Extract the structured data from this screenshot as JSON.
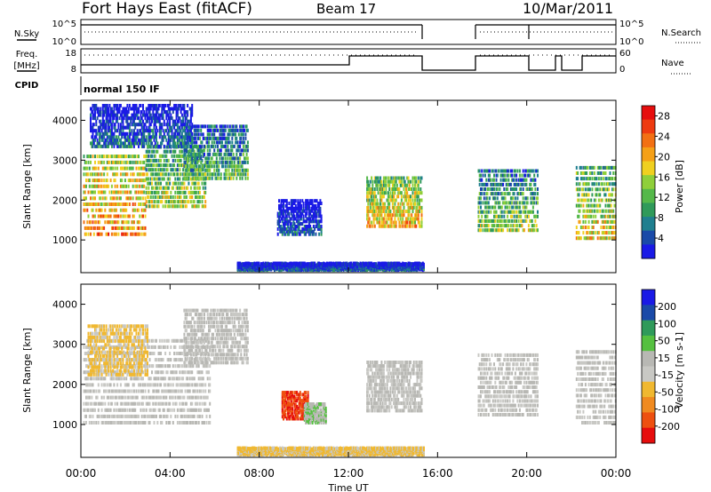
{
  "header": {
    "station": "Fort Hays East (fitACF)",
    "beam": "Beam 17",
    "date": "10/Mar/2011"
  },
  "panels": {
    "nsky_label": "N.Sky",
    "nsky_ticks": [
      "10^5",
      "10^0"
    ],
    "nsearch_label": "N.Search",
    "nsearch_ticks": [
      "10^5",
      "10^0"
    ],
    "freq_label_1": "Freq.",
    "freq_label_2": "[MHz]",
    "freq_ticks": [
      "18",
      "8"
    ],
    "nave_label": "Nave",
    "nave_ticks": [
      "60",
      "0"
    ],
    "cpid_label": "CPID",
    "cpid_value": "normal 150 IF"
  },
  "colors": {
    "power_scale": [
      "#1a1ae6",
      "#1a4aa8",
      "#1f7f8f",
      "#2f9a5a",
      "#55b84a",
      "#8fcf3a",
      "#f0d020",
      "#f5a017",
      "#f27013",
      "#ee3b10",
      "#e60d0d"
    ],
    "velocity_scale": [
      "#1a1ae6",
      "#1a4aa8",
      "#2f9a5a",
      "#55c040",
      "#b8b8b4",
      "#c8c8c4",
      "#f0b830",
      "#f08a20",
      "#ee5010",
      "#e60d0d"
    ]
  },
  "chart_data": [
    {
      "type": "heatmap",
      "name": "power",
      "ylabel": "Slant Range [km]",
      "xlabel": "Time UT",
      "x_ticks": [
        "00:00",
        "04:00",
        "08:00",
        "12:00",
        "16:00",
        "20:00",
        "00:00"
      ],
      "y_ticks": [
        "1000",
        "2000",
        "3000",
        "4000"
      ],
      "xlim_hours": [
        0,
        24
      ],
      "ylim_km": [
        180,
        4500
      ],
      "colorbar_label": "Power [dB]",
      "colorbar_ticks": [
        "4",
        "8",
        "12",
        "16",
        "20",
        "24",
        "28"
      ],
      "colorbar_range": [
        0,
        30
      ],
      "regions": [
        {
          "t0": 0.1,
          "t1": 2.9,
          "base_km": 1100,
          "top_km": 3200,
          "value": 22
        },
        {
          "t0": 2.9,
          "t1": 5.6,
          "base_km": 1800,
          "top_km": 3400,
          "value": 16
        },
        {
          "t0": 4.6,
          "t1": 7.5,
          "base_km": 2500,
          "top_km": 3900,
          "value": 12
        },
        {
          "t0": 0.4,
          "t1": 5.0,
          "base_km": 3300,
          "top_km": 4400,
          "value": 6
        },
        {
          "t0": 8.8,
          "t1": 10.8,
          "base_km": 1100,
          "top_km": 2000,
          "value": 5
        },
        {
          "t0": 12.8,
          "t1": 15.3,
          "base_km": 1300,
          "top_km": 2600,
          "value": 20
        },
        {
          "t0": 17.8,
          "t1": 20.5,
          "base_km": 1200,
          "top_km": 2800,
          "value": 14
        },
        {
          "t0": 22.2,
          "t1": 24.0,
          "base_km": 1000,
          "top_km": 2900,
          "value": 18
        },
        {
          "t0": 7.0,
          "t1": 15.4,
          "base_km": 200,
          "top_km": 380,
          "value": 6
        }
      ]
    },
    {
      "type": "heatmap",
      "name": "velocity",
      "ylabel": "Slant Range [km]",
      "xlabel": "Time UT",
      "x_ticks": [
        "00:00",
        "04:00",
        "08:00",
        "12:00",
        "16:00",
        "20:00",
        "00:00"
      ],
      "y_ticks": [
        "1000",
        "2000",
        "3000",
        "4000"
      ],
      "xlim_hours": [
        0,
        24
      ],
      "ylim_km": [
        180,
        4500
      ],
      "colorbar_label": "Velocity [m s-1]",
      "colorbar_ticks": [
        "200",
        "100",
        "50",
        "15",
        "-15",
        "-50",
        "-100",
        "-200"
      ],
      "colorbar_range": [
        -250,
        250
      ],
      "regions": [
        {
          "t0": 0.1,
          "t1": 5.8,
          "base_km": 1000,
          "top_km": 3200,
          "value": 0
        },
        {
          "t0": 4.6,
          "t1": 7.5,
          "base_km": 2500,
          "top_km": 3900,
          "value": 10
        },
        {
          "t0": 0.3,
          "t1": 3.0,
          "base_km": 2200,
          "top_km": 3500,
          "value": -60
        },
        {
          "t0": 9.0,
          "t1": 10.2,
          "base_km": 1100,
          "top_km": 1800,
          "value": -190
        },
        {
          "t0": 10.0,
          "t1": 11.0,
          "base_km": 1000,
          "top_km": 1500,
          "value": 40
        },
        {
          "t0": 12.8,
          "t1": 15.3,
          "base_km": 1300,
          "top_km": 2600,
          "value": 0
        },
        {
          "t0": 17.8,
          "t1": 20.5,
          "base_km": 1200,
          "top_km": 2800,
          "value": 0
        },
        {
          "t0": 22.2,
          "t1": 24.0,
          "base_km": 1000,
          "top_km": 2900,
          "value": 0
        },
        {
          "t0": 7.0,
          "t1": 15.4,
          "base_km": 200,
          "top_km": 380,
          "value": -60
        }
      ]
    }
  ]
}
